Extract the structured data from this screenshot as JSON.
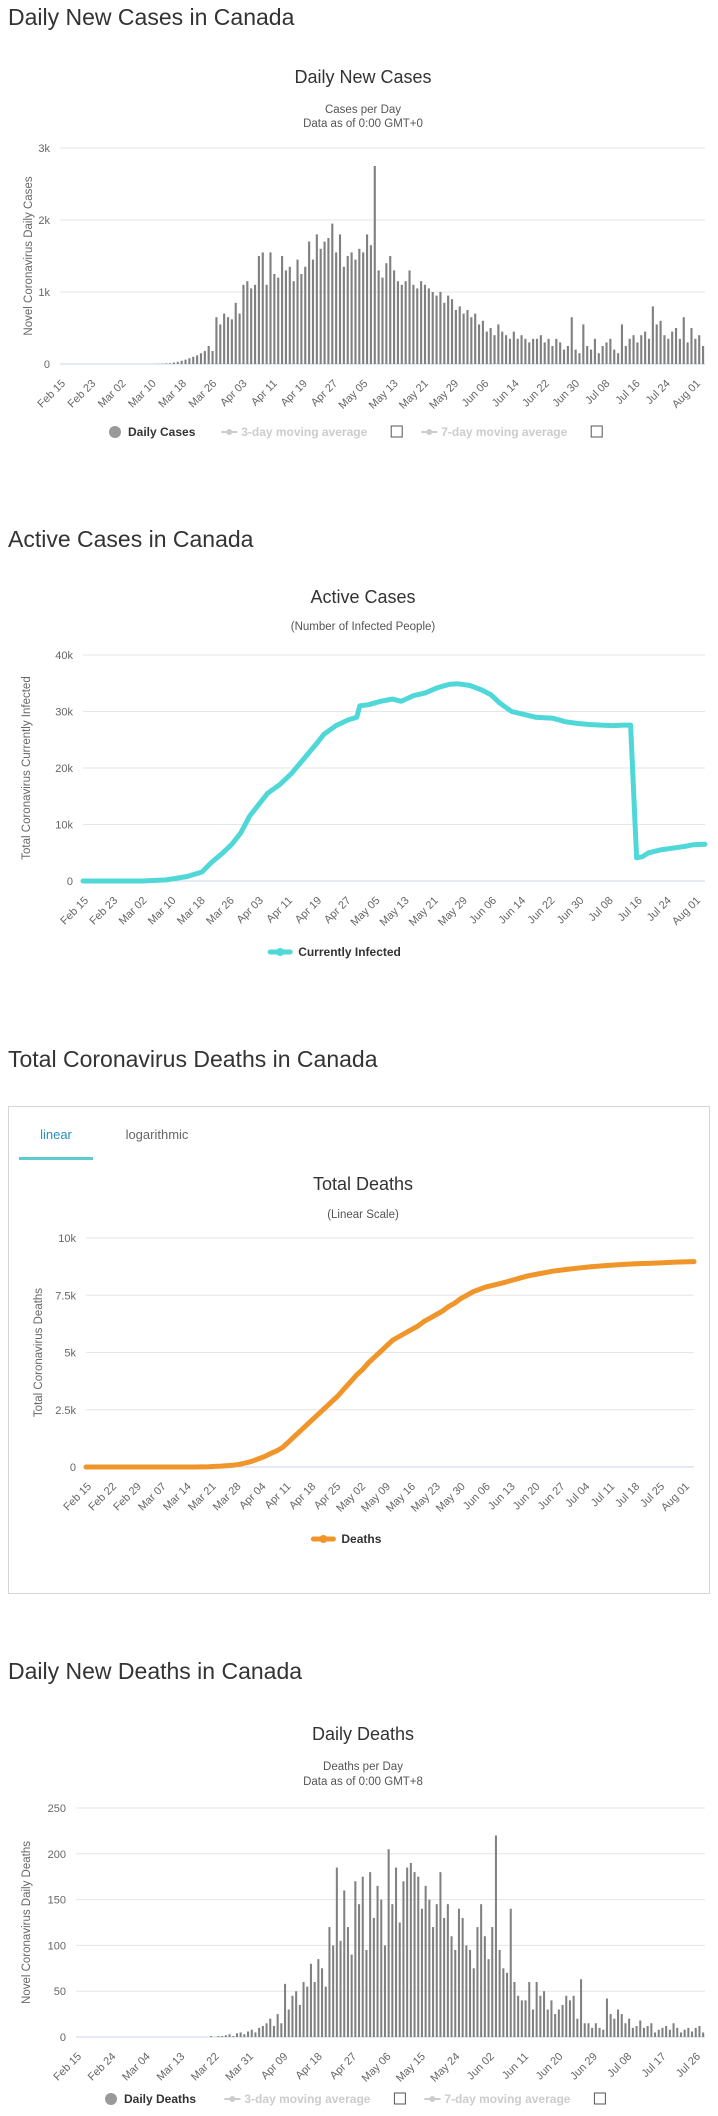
{
  "sections": {
    "daily_cases": "Daily New Cases in Canada",
    "active_cases": "Active Cases in Canada",
    "total_deaths": "Total Coronavirus Deaths in Canada",
    "daily_deaths": "Daily New Deaths in Canada"
  },
  "tabs": {
    "linear": "linear",
    "logarithmic": "logarithmic"
  },
  "chart_data": [
    {
      "id": "daily-cases",
      "type": "bar",
      "title": "Daily New Cases",
      "subtitle": [
        "Cases per Day",
        "Data as of 0:00 GMT+0"
      ],
      "ylabel": "Novel Coronavirus Daily Cases",
      "ylim": [
        0,
        3000
      ],
      "yticks": [
        0,
        1000,
        2000,
        3000
      ],
      "ytick_labels": [
        "0",
        "1k",
        "2k",
        "3k"
      ],
      "x_start": "2020-02-15",
      "xtick_labels": [
        "Feb 15",
        "Feb 23",
        "Mar 02",
        "Mar 10",
        "Mar 18",
        "Mar 26",
        "Apr 03",
        "Apr 11",
        "Apr 19",
        "Apr 27",
        "May 05",
        "May 13",
        "May 21",
        "May 29",
        "Jun 06",
        "Jun 14",
        "Jun 22",
        "Jun 30",
        "Jul 08",
        "Jul 16",
        "Jul 24",
        "Aug 01"
      ],
      "legend": [
        {
          "label": "Daily Cases",
          "active": true
        },
        {
          "label": "3-day moving average",
          "active": false
        },
        {
          "label": "7-day moving average",
          "active": false
        }
      ],
      "color": "#808080",
      "values": [
        0,
        0,
        0,
        0,
        0,
        0,
        0,
        0,
        0,
        0,
        0,
        0,
        0,
        0,
        0,
        0,
        0,
        0,
        0,
        0,
        0,
        0,
        0,
        0,
        2,
        3,
        5,
        8,
        10,
        20,
        30,
        45,
        60,
        80,
        100,
        120,
        150,
        180,
        250,
        180,
        650,
        550,
        700,
        650,
        620,
        850,
        700,
        1100,
        1150,
        1050,
        1100,
        1500,
        1550,
        1100,
        1550,
        1250,
        1200,
        1500,
        1300,
        1350,
        1150,
        1450,
        1250,
        1350,
        1700,
        1450,
        1800,
        1600,
        1700,
        1750,
        1950,
        1550,
        1800,
        1350,
        1500,
        1550,
        1450,
        1600,
        1550,
        1800,
        1650,
        2750,
        1300,
        1200,
        1400,
        1500,
        1300,
        1150,
        1100,
        1150,
        1300,
        1100,
        1050,
        1150,
        1100,
        1050,
        1000,
        950,
        1000,
        850,
        950,
        900,
        750,
        800,
        700,
        750,
        650,
        700,
        550,
        600,
        450,
        500,
        400,
        550,
        450,
        400,
        350,
        450,
        350,
        400,
        350,
        300,
        350,
        350,
        400,
        300,
        350,
        250,
        350,
        300,
        200,
        250,
        650,
        200,
        150,
        550,
        250,
        200,
        350,
        150,
        250,
        300,
        350,
        200,
        150,
        550,
        250,
        350,
        400,
        300,
        400,
        450,
        350,
        800,
        550,
        600,
        400,
        350,
        450,
        500,
        350,
        650,
        300,
        500,
        350,
        400,
        250
      ]
    },
    {
      "id": "active-cases",
      "type": "line",
      "title": "Active Cases",
      "subtitle": [
        "(Number of Infected People)"
      ],
      "ylabel": "Total Coronavirus Currently Infected",
      "ylim": [
        0,
        40000
      ],
      "yticks": [
        0,
        10000,
        20000,
        30000,
        40000
      ],
      "ytick_labels": [
        "0",
        "10k",
        "20k",
        "30k",
        "40k"
      ],
      "xtick_labels": [
        "Feb 15",
        "Feb 23",
        "Mar 02",
        "Mar 10",
        "Mar 18",
        "Mar 26",
        "Apr 03",
        "Apr 11",
        "Apr 19",
        "Apr 27",
        "May 05",
        "May 13",
        "May 21",
        "May 29",
        "Jun 06",
        "Jun 14",
        "Jun 22",
        "Jun 30",
        "Jul 08",
        "Jul 16",
        "Jul 24",
        "Aug 01"
      ],
      "legend": [
        {
          "label": "Currently Infected"
        }
      ],
      "color": "#50d8d8",
      "points": [
        [
          0,
          0
        ],
        [
          20,
          0
        ],
        [
          28,
          200
        ],
        [
          35,
          800
        ],
        [
          40,
          1600
        ],
        [
          43,
          3200
        ],
        [
          47,
          5000
        ],
        [
          50,
          6500
        ],
        [
          53,
          8500
        ],
        [
          56,
          11500
        ],
        [
          59,
          13500
        ],
        [
          62,
          15500
        ],
        [
          66,
          17000
        ],
        [
          70,
          19000
        ],
        [
          74,
          21500
        ],
        [
          78,
          24000
        ],
        [
          81,
          26000
        ],
        [
          85,
          27500
        ],
        [
          89,
          28500
        ],
        [
          92,
          29000
        ],
        [
          93,
          31000
        ],
        [
          96,
          31200
        ],
        [
          100,
          31800
        ],
        [
          104,
          32200
        ],
        [
          107,
          31800
        ],
        [
          111,
          32800
        ],
        [
          115,
          33300
        ],
        [
          119,
          34200
        ],
        [
          123,
          34800
        ],
        [
          126,
          34900
        ],
        [
          130,
          34600
        ],
        [
          134,
          33800
        ],
        [
          137,
          33000
        ],
        [
          140,
          31500
        ],
        [
          144,
          30000
        ],
        [
          148,
          29500
        ],
        [
          152,
          29000
        ],
        [
          158,
          28800
        ],
        [
          162,
          28200
        ],
        [
          166,
          27900
        ],
        [
          170,
          27700
        ],
        [
          174,
          27600
        ],
        [
          178,
          27500
        ],
        [
          182,
          27600
        ],
        [
          184,
          27600
        ],
        [
          186,
          4100
        ],
        [
          188,
          4300
        ],
        [
          190,
          5000
        ],
        [
          194,
          5500
        ],
        [
          198,
          5800
        ],
        [
          202,
          6100
        ],
        [
          205,
          6400
        ],
        [
          209,
          6500
        ]
      ]
    },
    {
      "id": "total-deaths",
      "type": "line",
      "title": "Total Deaths",
      "subtitle": [
        "(Linear Scale)"
      ],
      "ylabel": "Total Coronavirus Deaths",
      "ylim": [
        0,
        10000
      ],
      "yticks": [
        0,
        2500,
        5000,
        7500,
        10000
      ],
      "ytick_labels": [
        "0",
        "2.5k",
        "5k",
        "7.5k",
        "10k"
      ],
      "xtick_labels": [
        "Feb 15",
        "Feb 22",
        "Feb 29",
        "Mar 07",
        "Mar 14",
        "Mar 21",
        "Mar 28",
        "Apr 04",
        "Apr 11",
        "Apr 18",
        "Apr 25",
        "May 02",
        "May 09",
        "May 16",
        "May 23",
        "May 30",
        "Jun 06",
        "Jun 13",
        "Jun 20",
        "Jun 27",
        "Jul 04",
        "Jul 11",
        "Jul 18",
        "Jul 25",
        "Aug 01"
      ],
      "legend": [
        {
          "label": "Deaths"
        }
      ],
      "color": "#f0952a",
      "points": [
        [
          0,
          0
        ],
        [
          28,
          0
        ],
        [
          35,
          1
        ],
        [
          40,
          10
        ],
        [
          42,
          25
        ],
        [
          44,
          40
        ],
        [
          46,
          60
        ],
        [
          48,
          80
        ],
        [
          50,
          120
        ],
        [
          52,
          180
        ],
        [
          54,
          250
        ],
        [
          56,
          350
        ],
        [
          58,
          450
        ],
        [
          60,
          580
        ],
        [
          62,
          700
        ],
        [
          64,
          850
        ],
        [
          66,
          1100
        ],
        [
          68,
          1350
        ],
        [
          70,
          1600
        ],
        [
          72,
          1850
        ],
        [
          74,
          2100
        ],
        [
          76,
          2350
        ],
        [
          78,
          2600
        ],
        [
          80,
          2850
        ],
        [
          82,
          3100
        ],
        [
          84,
          3400
        ],
        [
          86,
          3700
        ],
        [
          88,
          4000
        ],
        [
          90,
          4250
        ],
        [
          92,
          4550
        ],
        [
          94,
          4800
        ],
        [
          96,
          5050
        ],
        [
          98,
          5300
        ],
        [
          100,
          5550
        ],
        [
          102,
          5700
        ],
        [
          104,
          5850
        ],
        [
          106,
          6000
        ],
        [
          108,
          6150
        ],
        [
          110,
          6350
        ],
        [
          112,
          6500
        ],
        [
          114,
          6650
        ],
        [
          116,
          6800
        ],
        [
          118,
          7000
        ],
        [
          120,
          7150
        ],
        [
          122,
          7350
        ],
        [
          124,
          7500
        ],
        [
          126,
          7650
        ],
        [
          128,
          7750
        ],
        [
          130,
          7850
        ],
        [
          133,
          7950
        ],
        [
          136,
          8050
        ],
        [
          140,
          8200
        ],
        [
          144,
          8350
        ],
        [
          148,
          8450
        ],
        [
          152,
          8550
        ],
        [
          156,
          8620
        ],
        [
          160,
          8680
        ],
        [
          164,
          8740
        ],
        [
          168,
          8780
        ],
        [
          172,
          8820
        ],
        [
          176,
          8850
        ],
        [
          180,
          8880
        ],
        [
          184,
          8900
        ],
        [
          188,
          8920
        ],
        [
          193,
          8950
        ],
        [
          198,
          8970
        ]
      ]
    },
    {
      "id": "daily-deaths",
      "type": "bar",
      "title": "Daily Deaths",
      "subtitle": [
        "Deaths per Day",
        "Data as of 0:00 GMT+8"
      ],
      "ylabel": "Novel Coronavirus Daily Deaths",
      "ylim": [
        0,
        250
      ],
      "yticks": [
        0,
        50,
        100,
        150,
        200,
        250
      ],
      "ytick_labels": [
        "0",
        "50",
        "100",
        "150",
        "200",
        "250"
      ],
      "xtick_labels": [
        "Feb 15",
        "Feb 24",
        "Mar 04",
        "Mar 13",
        "Mar 22",
        "Mar 31",
        "Apr 09",
        "Apr 18",
        "Apr 27",
        "May 06",
        "May 15",
        "May 24",
        "Jun 02",
        "Jun 11",
        "Jun 20",
        "Jun 29",
        "Jul 08",
        "Jul 17",
        "Jul 26"
      ],
      "legend": [
        {
          "label": "Daily Deaths",
          "active": true
        },
        {
          "label": "3-day moving average",
          "active": false
        },
        {
          "label": "7-day moving average",
          "active": false
        }
      ],
      "color": "#808080",
      "values": [
        0,
        0,
        0,
        0,
        0,
        0,
        0,
        0,
        0,
        0,
        0,
        0,
        0,
        0,
        0,
        0,
        0,
        0,
        0,
        0,
        0,
        0,
        0,
        0,
        0,
        0,
        0,
        0,
        0,
        0,
        0,
        0,
        0,
        0,
        0,
        0,
        1,
        0,
        1,
        1,
        2,
        3,
        1,
        4,
        5,
        3,
        6,
        8,
        5,
        10,
        12,
        15,
        20,
        12,
        25,
        15,
        58,
        30,
        45,
        50,
        35,
        60,
        55,
        80,
        60,
        85,
        75,
        55,
        120,
        100,
        185,
        105,
        160,
        120,
        90,
        170,
        145,
        175,
        95,
        180,
        130,
        165,
        150,
        100,
        205,
        145,
        185,
        125,
        170,
        185,
        190,
        180,
        175,
        140,
        165,
        150,
        120,
        145,
        180,
        130,
        145,
        110,
        95,
        140,
        130,
        100,
        95,
        75,
        120,
        145,
        110,
        85,
        120,
        220,
        95,
        75,
        70,
        140,
        60,
        45,
        40,
        40,
        60,
        30,
        60,
        45,
        50,
        30,
        40,
        25,
        30,
        35,
        45,
        40,
        45,
        20,
        63,
        15,
        15,
        10,
        15,
        10,
        8,
        42,
        25,
        20,
        30,
        25,
        15,
        20,
        10,
        12,
        18,
        10,
        12,
        15,
        5,
        8,
        10,
        12,
        8,
        15,
        10,
        5,
        8,
        10,
        6,
        10,
        12,
        5
      ]
    }
  ]
}
